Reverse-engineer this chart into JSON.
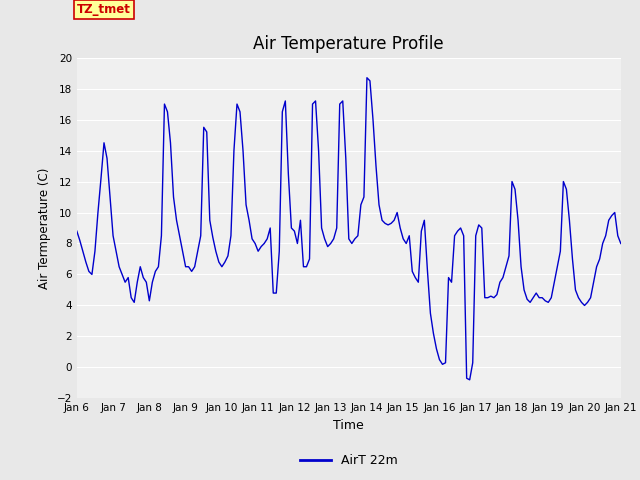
{
  "title": "Air Temperature Profile",
  "xlabel": "Time",
  "ylabel": "Air Termperature (C)",
  "xlim_days": [
    6,
    21
  ],
  "ylim": [
    -2,
    20
  ],
  "yticks": [
    -2,
    0,
    2,
    4,
    6,
    8,
    10,
    12,
    14,
    16,
    18,
    20
  ],
  "xtick_labels": [
    "Jan 6",
    "Jan 7",
    "Jan 8",
    "Jan 9",
    "Jan 10",
    "Jan 11",
    "Jan 12",
    "Jan 13",
    "Jan 14",
    "Jan 15",
    "Jan 16",
    "Jan 17",
    "Jan 18",
    "Jan 19",
    "Jan 20",
    "Jan 21"
  ],
  "line_color": "#0000cc",
  "line_label": "AirT 22m",
  "bg_color": "#e8e8e8",
  "plot_bg_color": "#f0f0f0",
  "grid_color": "#ffffff",
  "tz_text": "TZ_tmet",
  "tz_color": "#cc0000",
  "tz_bg": "#ffff99",
  "time_data": [
    6.0,
    6.083,
    6.167,
    6.25,
    6.333,
    6.417,
    6.5,
    6.583,
    6.667,
    6.75,
    6.833,
    6.917,
    7.0,
    7.083,
    7.167,
    7.25,
    7.333,
    7.417,
    7.5,
    7.583,
    7.667,
    7.75,
    7.833,
    7.917,
    8.0,
    8.083,
    8.167,
    8.25,
    8.333,
    8.417,
    8.5,
    8.583,
    8.667,
    8.75,
    8.833,
    8.917,
    9.0,
    9.083,
    9.167,
    9.25,
    9.333,
    9.417,
    9.5,
    9.583,
    9.667,
    9.75,
    9.833,
    9.917,
    10.0,
    10.083,
    10.167,
    10.25,
    10.333,
    10.417,
    10.5,
    10.583,
    10.667,
    10.75,
    10.833,
    10.917,
    11.0,
    11.083,
    11.167,
    11.25,
    11.333,
    11.417,
    11.5,
    11.583,
    11.667,
    11.75,
    11.833,
    11.917,
    12.0,
    12.083,
    12.167,
    12.25,
    12.333,
    12.417,
    12.5,
    12.583,
    12.667,
    12.75,
    12.833,
    12.917,
    13.0,
    13.083,
    13.167,
    13.25,
    13.333,
    13.417,
    13.5,
    13.583,
    13.667,
    13.75,
    13.833,
    13.917,
    14.0,
    14.083,
    14.167,
    14.25,
    14.333,
    14.417,
    14.5,
    14.583,
    14.667,
    14.75,
    14.833,
    14.917,
    15.0,
    15.083,
    15.167,
    15.25,
    15.333,
    15.417,
    15.5,
    15.583,
    15.667,
    15.75,
    15.833,
    15.917,
    16.0,
    16.083,
    16.167,
    16.25,
    16.333,
    16.417,
    16.5,
    16.583,
    16.667,
    16.75,
    16.833,
    16.917,
    17.0,
    17.083,
    17.167,
    17.25,
    17.333,
    17.417,
    17.5,
    17.583,
    17.667,
    17.75,
    17.833,
    17.917,
    18.0,
    18.083,
    18.167,
    18.25,
    18.333,
    18.417,
    18.5,
    18.583,
    18.667,
    18.75,
    18.833,
    18.917,
    19.0,
    19.083,
    19.167,
    19.25,
    19.333,
    19.417,
    19.5,
    19.583,
    19.667,
    19.75,
    19.833,
    19.917,
    20.0,
    20.083,
    20.167,
    20.25,
    20.333,
    20.417,
    20.5,
    20.583,
    20.667,
    20.75,
    20.833,
    20.917,
    21.0
  ],
  "temp_data": [
    8.8,
    8.2,
    7.5,
    6.8,
    6.2,
    6.0,
    7.5,
    10.0,
    12.2,
    14.5,
    13.5,
    11.0,
    8.5,
    7.5,
    6.5,
    6.0,
    5.5,
    5.8,
    4.5,
    4.2,
    5.5,
    6.5,
    5.8,
    5.5,
    4.3,
    5.5,
    6.2,
    6.5,
    8.5,
    17.0,
    16.5,
    14.5,
    11.0,
    9.5,
    8.5,
    7.5,
    6.5,
    6.5,
    6.2,
    6.5,
    7.5,
    8.5,
    15.5,
    15.2,
    9.5,
    8.4,
    7.5,
    6.8,
    6.5,
    6.8,
    7.2,
    8.5,
    14.0,
    17.0,
    16.5,
    14.0,
    10.5,
    9.5,
    8.3,
    8.0,
    7.5,
    7.8,
    8.0,
    8.3,
    9.0,
    4.8,
    4.8,
    7.5,
    16.5,
    17.2,
    12.5,
    9.0,
    8.8,
    8.0,
    9.5,
    6.5,
    6.5,
    7.0,
    17.0,
    17.2,
    14.0,
    9.0,
    8.3,
    7.8,
    8.0,
    8.3,
    9.0,
    17.0,
    17.2,
    13.5,
    8.3,
    8.0,
    8.3,
    8.5,
    10.5,
    11.0,
    18.7,
    18.5,
    16.0,
    13.0,
    10.5,
    9.5,
    9.3,
    9.2,
    9.3,
    9.5,
    10.0,
    9.0,
    8.3,
    8.0,
    8.5,
    6.2,
    5.8,
    5.5,
    8.8,
    9.5,
    6.3,
    3.5,
    2.2,
    1.2,
    0.5,
    0.2,
    0.3,
    5.8,
    5.5,
    8.5,
    8.8,
    9.0,
    8.5,
    -0.7,
    -0.8,
    0.3,
    8.5,
    9.2,
    9.0,
    4.5,
    4.5,
    4.6,
    4.5,
    4.7,
    5.5,
    5.8,
    6.5,
    7.2,
    12.0,
    11.5,
    9.5,
    6.5,
    5.0,
    4.4,
    4.2,
    4.5,
    4.8,
    4.5,
    4.5,
    4.3,
    4.2,
    4.5,
    5.5,
    6.5,
    7.5,
    12.0,
    11.5,
    9.5,
    7.0,
    5.0,
    4.5,
    4.2,
    4.0,
    4.2,
    4.5,
    5.5,
    6.5,
    7.0,
    8.0,
    8.5,
    9.5,
    9.8,
    10.0,
    8.5,
    8.0
  ]
}
